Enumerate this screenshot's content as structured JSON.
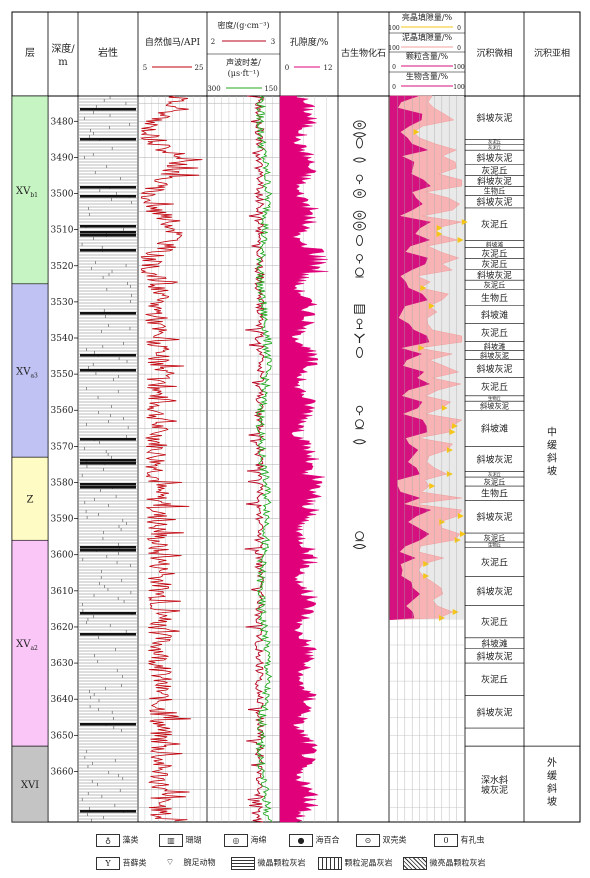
{
  "columns": {
    "layer": "层",
    "depth_line1": "深度/",
    "depth_line2": "m",
    "lithology": "岩性",
    "gr": "自然伽马/API",
    "gr_min": "5",
    "gr_max": "25",
    "den": "密度/(g·cm⁻³)",
    "den_min": "2",
    "den_max": "3",
    "ac_line1": "声波时差/",
    "ac_line2": "(μs·ft⁻¹)",
    "ac_min": "300",
    "ac_max": "150",
    "por": "孔隙度/%",
    "por_min": "0",
    "por_max": "12",
    "fossil": "古生物化石",
    "c1": "亮晶填隙量/%",
    "c1_min": "100",
    "c1_max": "0",
    "c2": "泥晶填隙量/%",
    "c2_min": "100",
    "c2_max": "0",
    "c3": "颗粒含量/%",
    "c3_min": "0",
    "c3_max": "100",
    "c4": "生物含量/%",
    "c4_min": "0",
    "c4_max": "100",
    "microfacies": "沉积微相",
    "subfacies": "沉积亚相"
  },
  "layers": [
    {
      "label": "XV",
      "sub": "b1",
      "top": 3473,
      "bottom": 3525,
      "color": "#c6f4c2"
    },
    {
      "label": "XV",
      "sub": "a3",
      "top": 3525,
      "bottom": 3573,
      "color": "#c0c2f3"
    },
    {
      "label": "Z",
      "sub": "",
      "top": 3573,
      "bottom": 3596,
      "color": "#fefbc4"
    },
    {
      "label": "XV",
      "sub": "a2",
      "top": 3596,
      "bottom": 3653,
      "color": "#fac6f8"
    },
    {
      "label": "XVI",
      "sub": "",
      "top": 3653,
      "bottom": 3674,
      "color": "#c4c4c4"
    }
  ],
  "depth_ticks": [
    3480,
    3490,
    3500,
    3510,
    3520,
    3530,
    3540,
    3550,
    3560,
    3570,
    3580,
    3590,
    3600,
    3610,
    3620,
    3630,
    3640,
    3650,
    3660
  ],
  "depth_range": [
    3473,
    3674
  ],
  "microfacies": [
    {
      "label": "斜坡灰泥",
      "top": 3473,
      "bottom": 3485
    },
    {
      "label": "灰泥丘",
      "top": 3485,
      "bottom": 3486.5
    },
    {
      "label": "灰泥丘",
      "top": 3486.5,
      "bottom": 3488
    },
    {
      "label": "斜坡灰泥",
      "top": 3488,
      "bottom": 3492
    },
    {
      "label": "灰泥丘",
      "top": 3492,
      "bottom": 3495
    },
    {
      "label": "斜坡灰泥",
      "top": 3495,
      "bottom": 3498
    },
    {
      "label": "生物丘",
      "top": 3498,
      "bottom": 3500.5
    },
    {
      "label": "斜坡灰泥",
      "top": 3500.5,
      "bottom": 3504
    },
    {
      "label": "灰泥丘",
      "top": 3504,
      "bottom": 3513
    },
    {
      "label": "斜坡滩",
      "top": 3513,
      "bottom": 3515
    },
    {
      "label": "灰泥丘",
      "top": 3515,
      "bottom": 3518
    },
    {
      "label": "灰泥丘",
      "top": 3518,
      "bottom": 3521
    },
    {
      "label": "斜坡灰泥",
      "top": 3521,
      "bottom": 3524
    },
    {
      "label": "灰泥丘",
      "top": 3524,
      "bottom": 3526.5
    },
    {
      "label": "生物丘",
      "top": 3526.5,
      "bottom": 3531
    },
    {
      "label": "斜坡滩",
      "top": 3531,
      "bottom": 3536
    },
    {
      "label": "灰泥丘",
      "top": 3536,
      "bottom": 3541
    },
    {
      "label": "斜坡滩",
      "top": 3541,
      "bottom": 3543.5
    },
    {
      "label": "斜坡灰泥",
      "top": 3543.5,
      "bottom": 3546
    },
    {
      "label": "斜坡灰泥",
      "top": 3546,
      "bottom": 3551
    },
    {
      "label": "灰泥丘",
      "top": 3551,
      "bottom": 3556
    },
    {
      "label": "生物丘",
      "top": 3556,
      "bottom": 3557.5
    },
    {
      "label": "斜坡灰泥",
      "top": 3557.5,
      "bottom": 3560
    },
    {
      "label": "斜坡滩",
      "top": 3560,
      "bottom": 3570
    },
    {
      "label": "斜坡灰泥",
      "top": 3570,
      "bottom": 3577
    },
    {
      "label": "灰泥丘",
      "top": 3577,
      "bottom": 3578.5
    },
    {
      "label": "灰泥丘",
      "top": 3578.5,
      "bottom": 3581
    },
    {
      "label": "生物丘",
      "top": 3581,
      "bottom": 3585
    },
    {
      "label": "斜坡灰泥",
      "top": 3585,
      "bottom": 3594
    },
    {
      "label": "灰泥丘",
      "top": 3594,
      "bottom": 3596.5
    },
    {
      "label": "生物丘",
      "top": 3596.5,
      "bottom": 3598
    },
    {
      "label": "灰泥丘",
      "top": 3598,
      "bottom": 3606
    },
    {
      "label": "斜坡灰泥",
      "top": 3606,
      "bottom": 3614
    },
    {
      "label": "灰泥丘",
      "top": 3614,
      "bottom": 3623
    },
    {
      "label": "斜坡滩",
      "top": 3623,
      "bottom": 3626
    },
    {
      "label": "斜坡灰泥",
      "top": 3626,
      "bottom": 3630
    },
    {
      "label": "灰泥丘",
      "top": 3630,
      "bottom": 3639
    },
    {
      "label": "斜坡灰泥",
      "top": 3639,
      "bottom": 3648
    },
    {
      "label": "深水斜坡灰泥",
      "top": 3653,
      "bottom": 3674
    }
  ],
  "subfacies": [
    {
      "label": "中缓斜坡",
      "top": 3473,
      "bottom": 3653
    },
    {
      "label": "外缓斜坡",
      "top": 3653,
      "bottom": 3674
    }
  ],
  "fossils": [
    {
      "type": "double-shell",
      "depth": 3481
    },
    {
      "type": "brachiopod",
      "depth": 3484
    },
    {
      "type": "foraminifera",
      "depth": 3486
    },
    {
      "type": "brachiopod",
      "depth": 3491
    },
    {
      "type": "crinoid",
      "depth": 3496
    },
    {
      "type": "double-shell",
      "depth": 3500
    },
    {
      "type": "double-shell",
      "depth": 3506
    },
    {
      "type": "double-shell",
      "depth": 3509
    },
    {
      "type": "foraminifera",
      "depth": 3513
    },
    {
      "type": "crinoid",
      "depth": 3518
    },
    {
      "type": "sponge",
      "depth": 3522
    },
    {
      "type": "coral",
      "depth": 3532
    },
    {
      "type": "algae",
      "depth": 3536
    },
    {
      "type": "bryozoan",
      "depth": 3540
    },
    {
      "type": "foraminifera",
      "depth": 3544
    },
    {
      "type": "crinoid",
      "depth": 3560
    },
    {
      "type": "sponge",
      "depth": 3564
    },
    {
      "type": "brachiopod",
      "depth": 3569
    },
    {
      "type": "sponge",
      "depth": 3595
    },
    {
      "type": "brachiopod",
      "depth": 3598
    }
  ],
  "legend": {
    "algae": "藻类",
    "coral": "珊瑚",
    "sponge": "海绵",
    "crinoid": "海百合",
    "double_shell": "双壳类",
    "foraminifera": "有孔虫",
    "bryozoan": "苔藓类",
    "brachiopod": "腕足动物",
    "micrite_grain": "微晶颗粒灰岩",
    "grain_micrite": "颗粒泥晶灰岩",
    "sparry_grain": "微亮晶颗粒灰岩"
  },
  "colors": {
    "gr": "#c0000a",
    "den": "#b8001e",
    "ac": "#22aa22",
    "por": "#e0007a",
    "c1": "#f5c518",
    "c2": "#f8b4b4",
    "c3": "#d4117e",
    "c4": "#d4117e",
    "grid": "#888888"
  }
}
